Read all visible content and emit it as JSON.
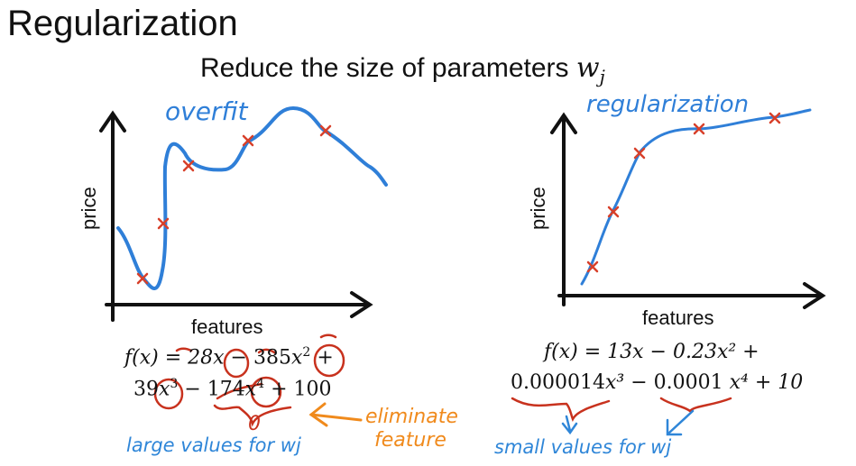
{
  "title": "Regularization",
  "subtitle": {
    "text": "Reduce the size of parameters ",
    "param": "w",
    "param_sub": "j"
  },
  "left_panel": {
    "curve_label": "overfit",
    "xlabel": "features",
    "ylabel": "price",
    "equation_line1": [
      "f(x) = 28",
      "x",
      " − 385",
      "x",
      "2",
      " +"
    ],
    "equation_line2": [
      "39",
      "x",
      "3",
      " − ",
      "174",
      "x",
      "4",
      " + 100"
    ],
    "zero_mark": "0",
    "eliminate_note": "eliminate\nfeature",
    "eliminate_line1": "eliminate",
    "eliminate_line2": "feature",
    "bottom_note": "large values for wj"
  },
  "right_panel": {
    "curve_label": "regularization",
    "xlabel": "features",
    "ylabel": "price",
    "equation_line1": "f(x) = 13x − 0.23x² +",
    "equation_line2_a": "0.000014",
    "equation_line2_b": "x³ − ",
    "equation_line2_c": "0.0001",
    "equation_line2_d": " x⁴ + 10",
    "bottom_note": "small values for wj"
  },
  "colors": {
    "curve": "#2f7fd8",
    "marker": "#d8402a",
    "annotation_red": "#c8321e",
    "annotation_orange": "#f08a1c",
    "annotation_blue": "#2f86d8",
    "text": "#111111"
  }
}
